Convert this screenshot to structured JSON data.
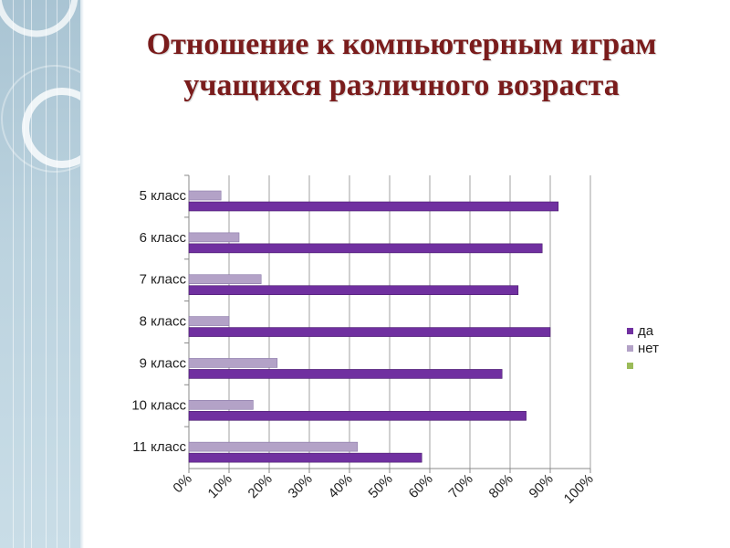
{
  "title": "Отношение к компьютерным играм учащихся различного возраста",
  "colors": {
    "da": "#7030a0",
    "net": "#b3a2c7",
    "empty": "#9bbb59",
    "title": "#7a1c1c"
  },
  "chart_data": {
    "type": "bar",
    "orientation": "horizontal",
    "categories": [
      "5 класс",
      "6 класс",
      "7 класс",
      "8 класс",
      "9 класс",
      "10 класс",
      "11 класс"
    ],
    "series": [
      {
        "name": "да",
        "values": [
          92,
          88,
          82,
          90,
          78,
          84,
          58
        ]
      },
      {
        "name": "нет",
        "values": [
          8,
          12.5,
          18,
          10,
          22,
          16,
          42
        ]
      },
      {
        "name": "",
        "values": [
          0,
          0,
          0,
          0,
          0,
          0,
          0
        ]
      }
    ],
    "xticks": [
      "0%",
      "10%",
      "20%",
      "30%",
      "40%",
      "50%",
      "60%",
      "70%",
      "80%",
      "90%",
      "100%"
    ],
    "xlim": [
      0,
      100
    ],
    "grid": "vertical",
    "legend": "right"
  }
}
